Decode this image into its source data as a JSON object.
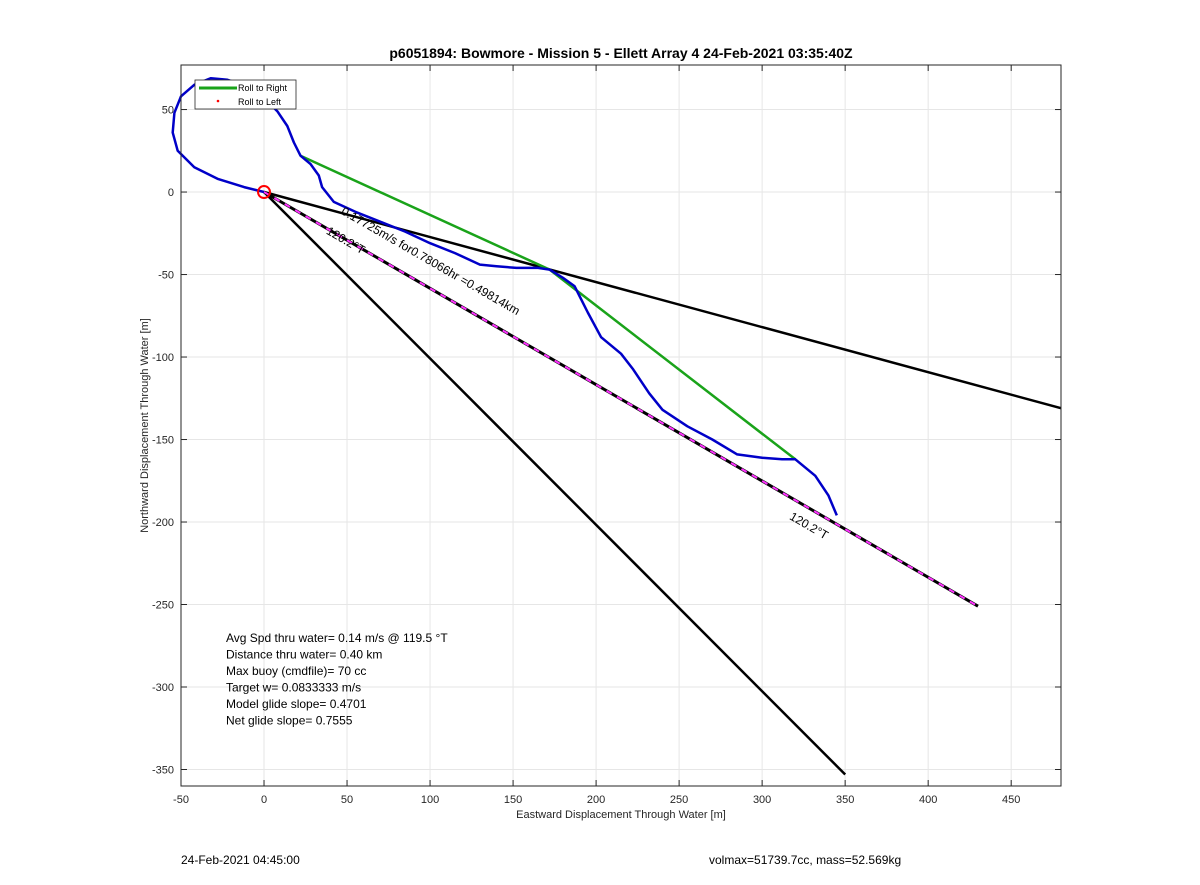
{
  "chart_data": {
    "type": "line",
    "title": "p6051894: Bowmore - Mission 5 - Ellett Array 4 24-Feb-2021 03:35:40Z",
    "xlabel": "Eastward Displacement Through Water [m]",
    "ylabel": "Northward Displacement Through Water [m]",
    "xlim": [
      -50,
      480
    ],
    "ylim": [
      -360,
      77
    ],
    "x_ticks": [
      -50,
      0,
      50,
      100,
      150,
      200,
      250,
      300,
      350,
      400,
      450
    ],
    "y_ticks": [
      50,
      0,
      -50,
      -100,
      -150,
      -200,
      -250,
      -300,
      -350
    ],
    "grid": true,
    "legend": {
      "position": "top-left",
      "entries": [
        {
          "label": "Roll to Right",
          "color": "#1aa31a"
        },
        {
          "label": "Roll to Left",
          "color": "#ff0000"
        }
      ]
    },
    "series": [
      {
        "name": "Roll to Right",
        "color": "#1aa31a",
        "x": [
          22,
          172,
          320
        ],
        "y": [
          22,
          -47,
          -162
        ]
      },
      {
        "color": "#0000c8",
        "x": [
          0,
          -12,
          -28,
          -42,
          -52,
          -55,
          -54,
          -50,
          -42,
          -32,
          -22,
          -10,
          0,
          8,
          14,
          18,
          22,
          28,
          33,
          35,
          42,
          55,
          70,
          85,
          100,
          115,
          130,
          140,
          152,
          165,
          172,
          180,
          187,
          190,
          195,
          203,
          215,
          222,
          232,
          240,
          255,
          270,
          285,
          300,
          312,
          320,
          332,
          340,
          345
        ],
        "y": [
          0,
          3,
          8,
          15,
          25,
          36,
          48,
          58,
          65,
          69,
          68,
          64,
          57,
          49,
          40,
          30,
          22,
          17,
          10,
          3,
          -6,
          -12,
          -18,
          -24,
          -31,
          -37,
          -44,
          -45,
          -46,
          -46,
          -47,
          -52,
          -57,
          -63,
          -73,
          -88,
          -98,
          -107,
          -122,
          -132,
          -142,
          -150,
          -159,
          -161,
          -162,
          -162,
          -172,
          -184,
          -196
        ]
      },
      {
        "color": "#000000",
        "x": [
          0,
          480
        ],
        "y": [
          0,
          -131
        ]
      },
      {
        "color": "#000000",
        "x": [
          0,
          350
        ],
        "y": [
          0,
          -353
        ]
      },
      {
        "color": "#000000",
        "x": [
          0,
          430
        ],
        "y": [
          0,
          -251
        ]
      }
    ],
    "origin_marker": {
      "x": 0,
      "y": 0,
      "color": "#ff0000"
    },
    "annotations": [
      {
        "text": "0.17725m/s for0.78066hr =0.49814km",
        "x": 46,
        "y": -13,
        "angle_deg": 30
      },
      {
        "text": "120.2°T",
        "x": 37,
        "y": -25,
        "angle_deg": 30
      },
      {
        "text": "120.2°T",
        "x": 316,
        "y": -198,
        "angle_deg": 30
      }
    ],
    "stats": [
      "Avg Spd thru water=  0.14 m/s @ 119.5 °T",
      "Distance thru water=  0.40 km",
      "Max buoy (cmdfile)= 70 cc",
      "Target w= 0.0833333 m/s",
      "Model glide slope= 0.4701",
      "Net glide slope= 0.7555"
    ]
  },
  "footer": {
    "left": "24-Feb-2021 04:45:00",
    "right": "volmax=51739.7cc, mass=52.569kg"
  }
}
